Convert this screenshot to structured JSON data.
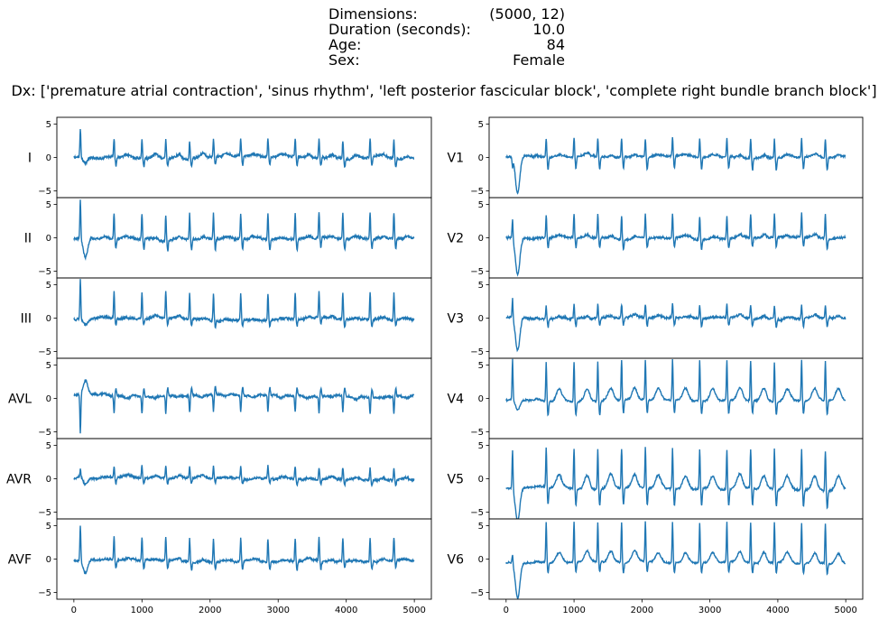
{
  "header": {
    "rows": [
      {
        "label": "Dimensions:",
        "value": "(5000, 12)"
      },
      {
        "label": "Duration (seconds):",
        "value": "10.0"
      },
      {
        "label": "Age:",
        "value": "84"
      },
      {
        "label": "Sex:",
        "value": "Female"
      }
    ],
    "dx": "Dx: ['premature atrial contraction', 'sinus rhythm', 'left posterior fascicular block', 'complete right bundle branch block']"
  },
  "chart_data": {
    "type": "line",
    "series_color": "#1f77b4",
    "samples": 5000,
    "xlim": [
      -250,
      5250
    ],
    "x_ticks": [
      0,
      1000,
      2000,
      3000,
      4000,
      5000
    ],
    "ylim": [
      -6,
      6
    ],
    "y_ticks": [
      -5,
      0,
      5
    ],
    "beat_positions": [
      590,
      1000,
      1350,
      1700,
      2050,
      2450,
      2850,
      3250,
      3600,
      3950,
      4350,
      4700
    ],
    "leads": [
      {
        "name": "I",
        "col": 0,
        "row": 0,
        "r_amp": 2.7,
        "s_amp": -1.3,
        "t_amp": 0.4,
        "baseline": 0.0,
        "noise": 0.35,
        "onset_spike": 4.4,
        "onset_dip": -0.8
      },
      {
        "name": "II",
        "col": 0,
        "row": 1,
        "r_amp": 3.8,
        "s_amp": -1.6,
        "t_amp": 0.3,
        "baseline": -0.2,
        "noise": 0.35,
        "onset_spike": 6.0,
        "onset_dip": -2.8
      },
      {
        "name": "III",
        "col": 0,
        "row": 2,
        "r_amp": 4.0,
        "s_amp": -1.0,
        "t_amp": 0.2,
        "baseline": -0.2,
        "noise": 0.35,
        "onset_spike": 6.0,
        "onset_dip": -1.0
      },
      {
        "name": "AVL",
        "col": 0,
        "row": 3,
        "r_amp": -2.5,
        "s_amp": 1.2,
        "t_amp": -0.3,
        "baseline": 0.4,
        "noise": 0.3,
        "onset_spike": -6.0,
        "onset_dip": 2.2
      },
      {
        "name": "AVR",
        "col": 0,
        "row": 4,
        "r_amp": 1.8,
        "s_amp": -0.8,
        "t_amp": 0.2,
        "baseline": 0.1,
        "noise": 0.3,
        "onset_spike": 1.2,
        "onset_dip": -0.9
      },
      {
        "name": "AVF",
        "col": 0,
        "row": 5,
        "r_amp": 3.5,
        "s_amp": -1.2,
        "t_amp": 0.2,
        "baseline": -0.3,
        "noise": 0.3,
        "onset_spike": 5.5,
        "onset_dip": -2.0
      },
      {
        "name": "V1",
        "col": 1,
        "row": 0,
        "r_amp": 2.8,
        "s_amp": -1.8,
        "t_amp": 0.3,
        "baseline": 0.1,
        "noise": 0.25,
        "onset_spike": -1.4,
        "onset_dip": -5.5
      },
      {
        "name": "V2",
        "col": 1,
        "row": 1,
        "r_amp": 3.5,
        "s_amp": -1.5,
        "t_amp": 0.3,
        "baseline": 0.0,
        "noise": 0.3,
        "onset_spike": 3.0,
        "onset_dip": -5.5
      },
      {
        "name": "V3",
        "col": 1,
        "row": 2,
        "r_amp": 2.0,
        "s_amp": -1.2,
        "t_amp": 0.3,
        "baseline": 0.0,
        "noise": 0.3,
        "onset_spike": 3.0,
        "onset_dip": -5.0
      },
      {
        "name": "V4",
        "col": 1,
        "row": 3,
        "r_amp": 6.0,
        "s_amp": -2.0,
        "t_amp": 1.8,
        "baseline": -0.3,
        "noise": 0.2,
        "onset_spike": 6.0,
        "onset_dip": -1.5
      },
      {
        "name": "V5",
        "col": 1,
        "row": 4,
        "r_amp": 6.0,
        "s_amp": -2.5,
        "t_amp": 2.0,
        "baseline": -1.5,
        "noise": 0.25,
        "onset_spike": 6.0,
        "onset_dip": -5.0
      },
      {
        "name": "V6",
        "col": 1,
        "row": 5,
        "r_amp": 6.0,
        "s_amp": -1.5,
        "t_amp": 1.5,
        "baseline": -0.5,
        "noise": 0.2,
        "onset_spike": 1.5,
        "onset_dip": -5.3
      }
    ]
  }
}
